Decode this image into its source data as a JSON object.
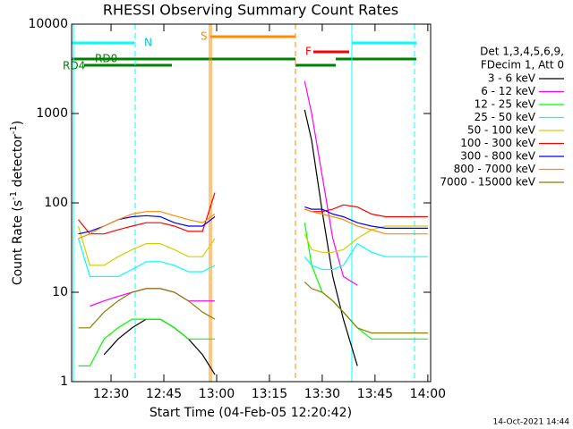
{
  "chart_data": {
    "type": "line",
    "title": "RHESSI Observing Summary Count Rates",
    "xlabel": "Start Time (04-Feb-05 12:20:42)",
    "ylabel": [
      "Count Rate (s",
      "-1",
      " detector",
      "-1",
      ")"
    ],
    "legend_header": [
      "Det 1,3,4,5,6,9,",
      "FDecim 1, Att 0"
    ],
    "footer": "14-Oct-2021 14:44",
    "flags": {
      "n": "N",
      "s": "S",
      "f": "F",
      "rd0": "RD0",
      "rd4": "RD4"
    },
    "log_y": true,
    "xlim": [
      18.8,
      120.8
    ],
    "ylim": [
      1,
      10000
    ],
    "xticks": [
      {
        "value": 30,
        "label": "12:30"
      },
      {
        "value": 45,
        "label": "12:45"
      },
      {
        "value": 60,
        "label": "13:00"
      },
      {
        "value": 75,
        "label": "13:15"
      },
      {
        "value": 90,
        "label": "13:30"
      },
      {
        "value": 105,
        "label": "13:45"
      },
      {
        "value": 120,
        "label": "14:00"
      }
    ],
    "yticks": [
      1,
      10,
      100,
      1000,
      10000
    ],
    "x": [
      20.7,
      24,
      28,
      32,
      36,
      40,
      44,
      48,
      52,
      56,
      59.5,
      62,
      85,
      87,
      90,
      93,
      96,
      100,
      104,
      108,
      112,
      116,
      120
    ],
    "series": [
      {
        "name": "3 - 6 keV",
        "color": "#000000",
        "values": [
          null,
          null,
          2,
          3,
          4,
          5,
          5,
          4,
          3,
          2,
          1.2,
          null,
          1100,
          500,
          80,
          15,
          5,
          1.5,
          null,
          null,
          null,
          null,
          null
        ]
      },
      {
        "name": "6 - 12 keV",
        "color": "#ff00ff",
        "values": [
          null,
          7,
          8,
          9,
          10,
          11,
          11,
          10,
          8,
          8,
          8,
          null,
          2300,
          1000,
          200,
          40,
          15,
          12,
          null,
          null,
          null,
          null,
          null
        ]
      },
      {
        "name": "12 - 25 keV",
        "color": "#00ff00",
        "values": [
          1.5,
          1.5,
          3,
          4,
          5,
          5,
          5,
          4,
          3,
          3,
          3,
          null,
          60,
          20,
          10,
          8,
          6,
          4,
          3,
          3,
          3,
          3,
          3
        ]
      },
      {
        "name": "25 - 50 keV",
        "color": "#00ffff",
        "values": [
          40,
          15,
          15,
          15,
          18,
          22,
          22,
          20,
          17,
          17,
          20,
          null,
          25,
          20,
          18,
          18,
          20,
          35,
          28,
          25,
          25,
          25,
          25
        ]
      },
      {
        "name": "50 - 100 keV",
        "color": "#d0d000",
        "values": [
          55,
          20,
          20,
          25,
          30,
          35,
          35,
          30,
          25,
          25,
          40,
          null,
          45,
          30,
          28,
          28,
          30,
          40,
          50,
          55,
          55,
          55,
          55
        ]
      },
      {
        "name": "100 - 300 keV",
        "color": "#ff0000",
        "values": [
          65,
          45,
          45,
          50,
          55,
          60,
          60,
          55,
          48,
          48,
          130,
          null,
          85,
          80,
          80,
          85,
          95,
          90,
          75,
          70,
          70,
          70,
          70
        ]
      },
      {
        "name": "300 - 800 keV",
        "color": "#0000ff",
        "values": [
          45,
          48,
          55,
          65,
          70,
          72,
          70,
          60,
          55,
          55,
          70,
          null,
          90,
          85,
          85,
          75,
          70,
          60,
          55,
          52,
          52,
          52,
          52
        ]
      },
      {
        "name": "800 - 7000 keV",
        "color": "#ff8c00",
        "values": [
          40,
          45,
          55,
          65,
          75,
          80,
          80,
          72,
          65,
          60,
          75,
          null,
          85,
          80,
          75,
          70,
          65,
          55,
          50,
          45,
          45,
          45,
          45
        ]
      },
      {
        "name": "7000 - 15000 keV",
        "color": "#8b7d00",
        "values": [
          4,
          4,
          6,
          8,
          10,
          11,
          11,
          10,
          8,
          6,
          5,
          null,
          13,
          11,
          10,
          8,
          6,
          4,
          3.5,
          3.5,
          3.5,
          3.5,
          3.5
        ]
      }
    ]
  }
}
